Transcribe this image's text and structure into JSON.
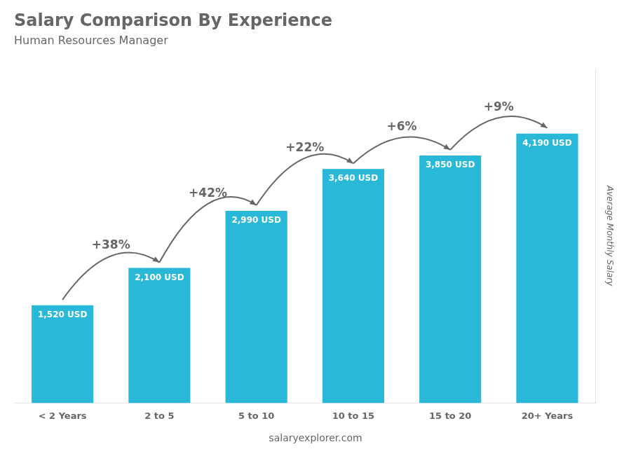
{
  "chart_data": {
    "type": "bar",
    "title": "Salary Comparison By Experience",
    "subtitle": "Human Resources Manager",
    "categories": [
      "< 2 Years",
      "2 to 5",
      "5 to 10",
      "10 to 15",
      "15 to 20",
      "20+ Years"
    ],
    "values": [
      1520,
      2100,
      2990,
      3640,
      3850,
      4190
    ],
    "value_labels": [
      "1,520 USD",
      "2,100 USD",
      "2,990 USD",
      "3,640 USD",
      "3,850 USD",
      "4,190 USD"
    ],
    "data_labels": true,
    "color": "#29b8d8",
    "ylabel": "Average Monthly Salary",
    "ylim": [
      0,
      5200
    ],
    "tick_labels": "x",
    "grid": false,
    "annotations": [
      "+38%",
      "+42%",
      "+22%",
      "+6%",
      "+9%"
    ],
    "footer": "salaryexplorer.com"
  }
}
